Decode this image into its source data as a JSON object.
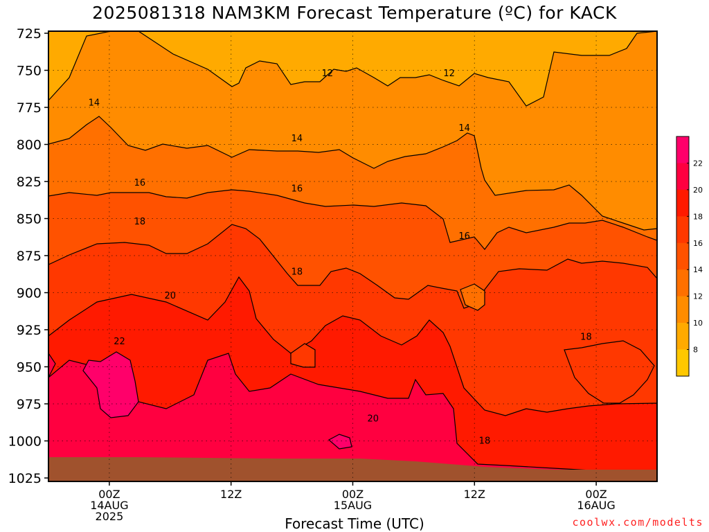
{
  "chart_data": {
    "type": "contour",
    "title": "2025081318 NAM3KM Forecast Temperature (ºC) for KACK",
    "xlabel": "Forecast Time (UTC)",
    "ylabel": "",
    "y_scale": "reversed",
    "ylim": [
      725,
      1025
    ],
    "y_ticks": [
      "725",
      "750",
      "775",
      "800",
      "825",
      "850",
      "875",
      "900",
      "925",
      "950",
      "975",
      "1000",
      "1025"
    ],
    "xlim": [
      -6,
      54
    ],
    "x_ticks": [
      {
        "x": 0,
        "lines": [
          "00Z",
          "14AUG",
          "2025"
        ]
      },
      {
        "x": 12,
        "lines": [
          "12Z"
        ]
      },
      {
        "x": 24,
        "lines": [
          "00Z",
          "15AUG"
        ]
      },
      {
        "x": 36,
        "lines": [
          "12Z"
        ]
      },
      {
        "x": 48,
        "lines": [
          "00Z",
          "16AUG"
        ]
      }
    ],
    "grid": true,
    "contour_levels": [
      8,
      10,
      12,
      14,
      16,
      18,
      20,
      22
    ],
    "colorbar": {
      "labels": [
        "8",
        "10",
        "12",
        "14",
        "16",
        "18",
        "20",
        "22"
      ],
      "colors": [
        "#ffc800",
        "#ffaa00",
        "#ff8c00",
        "#ff7000",
        "#ff5200",
        "#ff3800",
        "#ff1a00",
        "#ff0040",
        "#ff006a"
      ]
    },
    "contour_labels": [
      {
        "text": "12",
        "x": 21.5,
        "y": 752
      },
      {
        "text": "12",
        "x": 33.5,
        "y": 752
      },
      {
        "text": "14",
        "x": -1.5,
        "y": 772
      },
      {
        "text": "14",
        "x": 18.5,
        "y": 796
      },
      {
        "text": "14",
        "x": 35.0,
        "y": 789
      },
      {
        "text": "16",
        "x": 3.0,
        "y": 826
      },
      {
        "text": "16",
        "x": 18.5,
        "y": 830
      },
      {
        "text": "16",
        "x": 35.0,
        "y": 862
      },
      {
        "text": "18",
        "x": 3.0,
        "y": 852
      },
      {
        "text": "18",
        "x": 18.5,
        "y": 886
      },
      {
        "text": "18",
        "x": 47.0,
        "y": 930
      },
      {
        "text": "18",
        "x": 37.0,
        "y": 1000
      },
      {
        "text": "20",
        "x": 6.0,
        "y": 902
      },
      {
        "text": "20",
        "x": 26.0,
        "y": 985
      },
      {
        "text": "22",
        "x": 1.0,
        "y": 933
      }
    ],
    "surface_color": "#a0522d"
  },
  "footer": {
    "credit": "coolwx.com/modelts"
  }
}
